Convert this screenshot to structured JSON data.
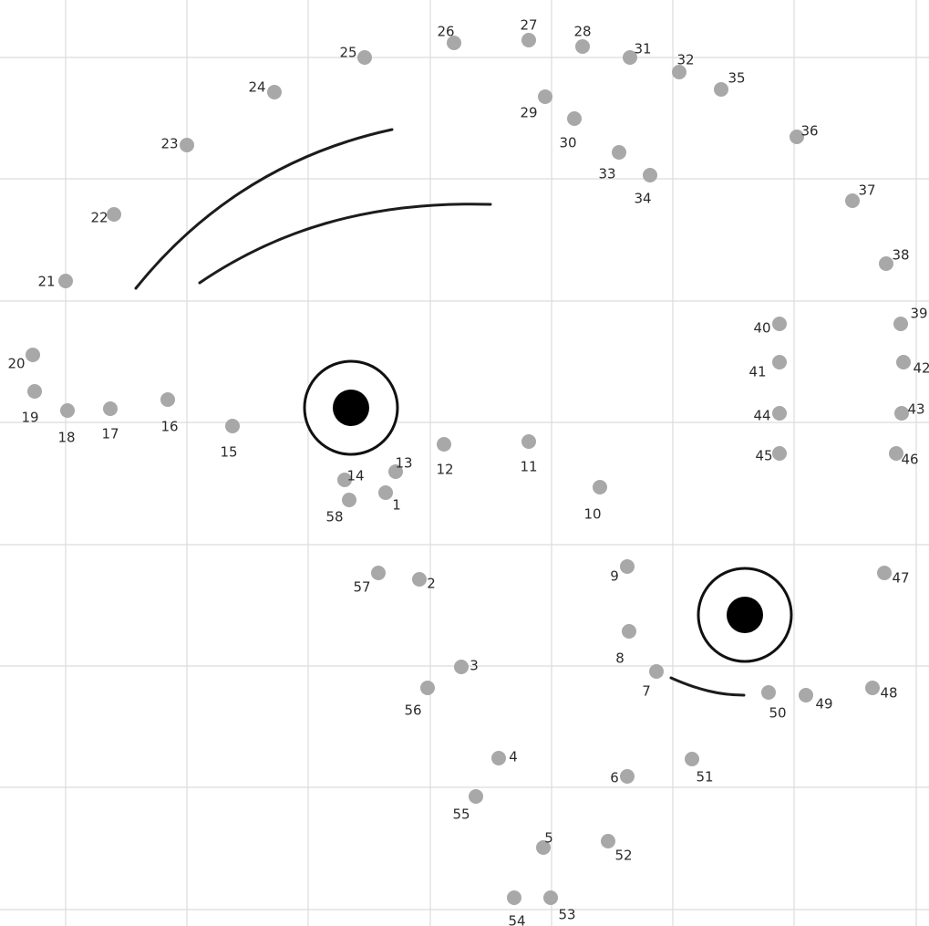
{
  "puzzle": {
    "dots": [
      {
        "n": "1"
      },
      {
        "n": "2"
      },
      {
        "n": "3"
      },
      {
        "n": "4"
      },
      {
        "n": "5"
      },
      {
        "n": "6"
      },
      {
        "n": "7"
      },
      {
        "n": "8"
      },
      {
        "n": "9"
      },
      {
        "n": "10"
      },
      {
        "n": "11"
      },
      {
        "n": "12"
      },
      {
        "n": "13"
      },
      {
        "n": "14"
      },
      {
        "n": "15"
      },
      {
        "n": "16"
      },
      {
        "n": "17"
      },
      {
        "n": "18"
      },
      {
        "n": "19"
      },
      {
        "n": "20"
      },
      {
        "n": "21"
      },
      {
        "n": "22"
      },
      {
        "n": "23"
      },
      {
        "n": "24"
      },
      {
        "n": "25"
      },
      {
        "n": "26"
      },
      {
        "n": "27"
      },
      {
        "n": "28"
      },
      {
        "n": "29"
      },
      {
        "n": "30"
      },
      {
        "n": "31"
      },
      {
        "n": "32"
      },
      {
        "n": "33"
      },
      {
        "n": "34"
      },
      {
        "n": "35"
      },
      {
        "n": "36"
      },
      {
        "n": "37"
      },
      {
        "n": "38"
      },
      {
        "n": "39"
      },
      {
        "n": "40"
      },
      {
        "n": "41"
      },
      {
        "n": "42"
      },
      {
        "n": "43"
      },
      {
        "n": "44"
      },
      {
        "n": "45"
      },
      {
        "n": "46"
      },
      {
        "n": "47"
      },
      {
        "n": "48"
      },
      {
        "n": "49"
      },
      {
        "n": "50"
      },
      {
        "n": "51"
      },
      {
        "n": "52"
      },
      {
        "n": "53"
      },
      {
        "n": "54"
      },
      {
        "n": "55"
      },
      {
        "n": "56"
      },
      {
        "n": "57"
      },
      {
        "n": "58"
      }
    ]
  },
  "colors": {
    "dot": "#a8a8a8",
    "grid": "#dcdcdc",
    "ink": "#1c1c1c",
    "background": "#ffffff"
  }
}
